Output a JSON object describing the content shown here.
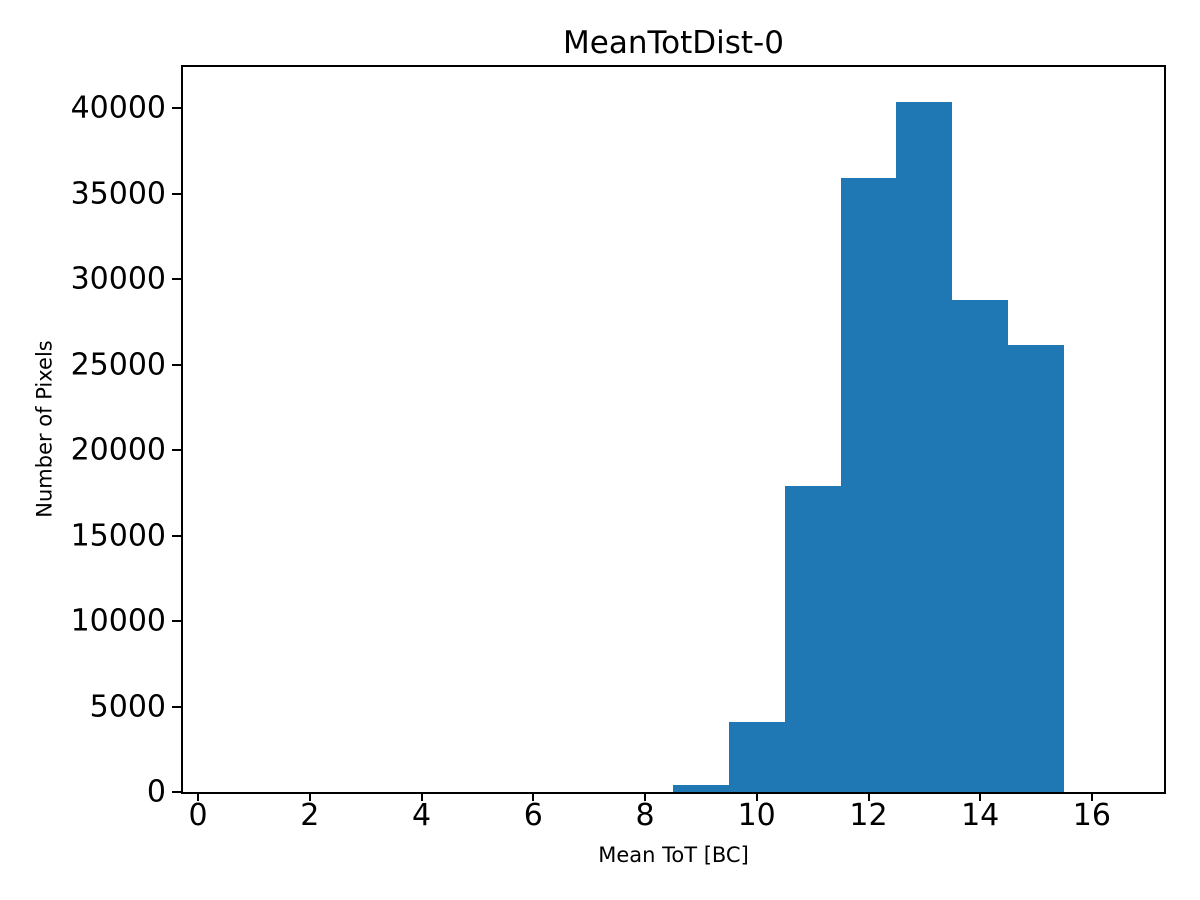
{
  "figure": {
    "background": "#ffffff",
    "text_color": "#000000",
    "axis_color": "#000000"
  },
  "chart_data": {
    "type": "bar",
    "subtype": "histogram",
    "title": "MeanTotDist-0",
    "xlabel": "Mean ToT [BC]",
    "ylabel": "Number of Pixels",
    "bar_color": "#1f77b4",
    "bin_edges": [
      8.5,
      9.5,
      10.5,
      11.5,
      12.5,
      13.5,
      14.5,
      15.5
    ],
    "counts": [
      400,
      4100,
      17900,
      35900,
      40350,
      28800,
      26150
    ],
    "xticks": [
      0,
      2,
      4,
      6,
      8,
      10,
      12,
      14,
      16
    ],
    "yticks": [
      0,
      5000,
      10000,
      15000,
      20000,
      25000,
      30000,
      35000,
      40000
    ],
    "xlim": [
      -0.27,
      17.29
    ],
    "ylim": [
      0,
      42400
    ],
    "grid": false,
    "legend": null
  }
}
